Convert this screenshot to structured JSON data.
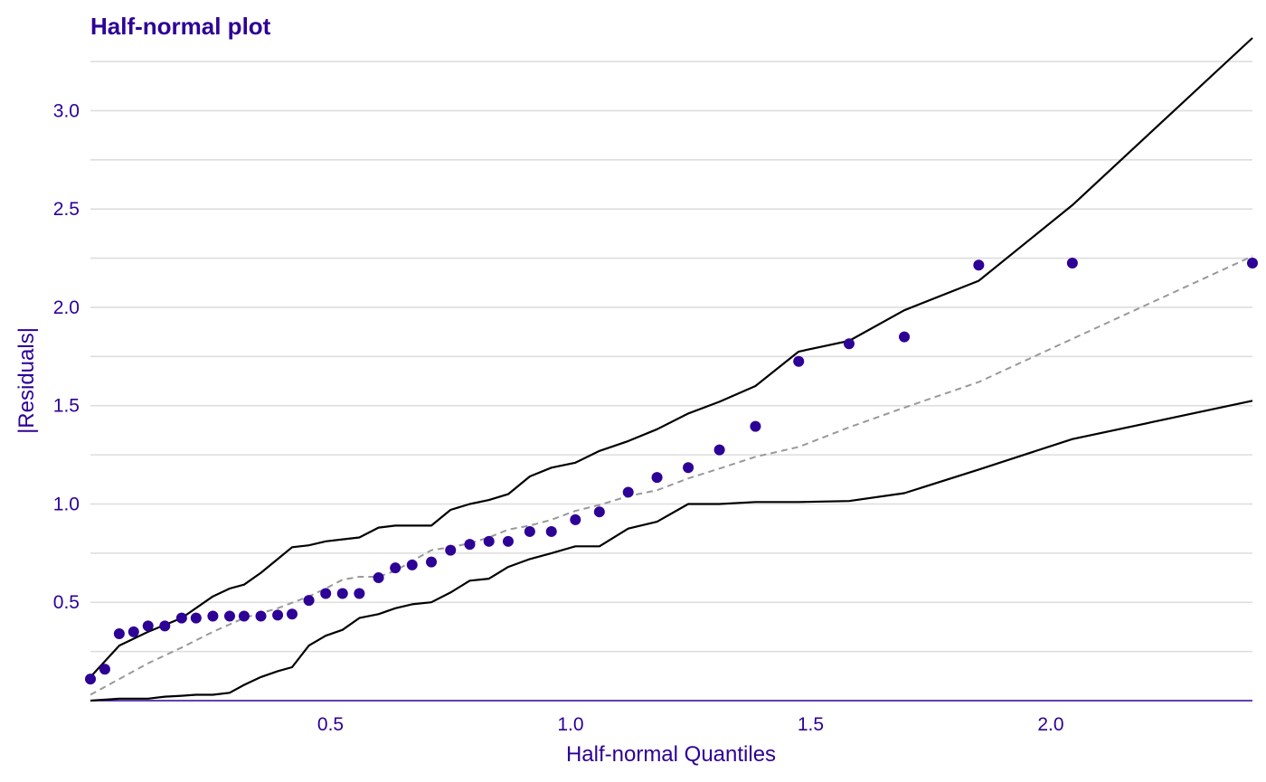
{
  "chart_data": {
    "type": "scatter",
    "title": "Half-normal plot",
    "xlabel": "Half-normal Quantiles",
    "ylabel": "|Residuals|",
    "xlim": [
      0.0,
      2.42
    ],
    "ylim": [
      0.0,
      3.37
    ],
    "x_ticks": [
      "0.5",
      "1.0",
      "1.5",
      "2.0"
    ],
    "x_tick_values": [
      0.5,
      1.0,
      1.5,
      2.0
    ],
    "y_ticks": [
      "0.5",
      "1.0",
      "1.5",
      "2.0",
      "2.5",
      "3.0"
    ],
    "y_tick_values": [
      0.5,
      1.0,
      1.5,
      2.0,
      2.5,
      3.0
    ],
    "y_minor_gridlines": [
      0.25,
      0.75,
      1.25,
      1.75,
      2.25,
      2.75,
      3.25
    ],
    "grid": "horizontal",
    "colors": {
      "accent": "#2d0096",
      "envelope": "#000000",
      "reference": "#999999",
      "grid": "#dddddd"
    },
    "series": [
      {
        "kind": "points",
        "color": "#2d0096",
        "x": [
          0.0,
          0.03,
          0.06,
          0.09,
          0.12,
          0.155,
          0.19,
          0.22,
          0.255,
          0.29,
          0.32,
          0.355,
          0.39,
          0.42,
          0.455,
          0.49,
          0.525,
          0.56,
          0.6,
          0.635,
          0.67,
          0.71,
          0.75,
          0.79,
          0.83,
          0.87,
          0.915,
          0.96,
          1.01,
          1.06,
          1.12,
          1.18,
          1.245,
          1.31,
          1.385,
          1.475,
          1.58,
          1.695,
          1.85,
          2.045,
          2.42
        ],
        "y": [
          0.11,
          0.16,
          0.34,
          0.35,
          0.38,
          0.38,
          0.42,
          0.42,
          0.43,
          0.43,
          0.43,
          0.43,
          0.435,
          0.44,
          0.51,
          0.545,
          0.545,
          0.545,
          0.625,
          0.675,
          0.69,
          0.705,
          0.765,
          0.795,
          0.81,
          0.81,
          0.86,
          0.86,
          0.92,
          0.96,
          1.06,
          1.135,
          1.185,
          1.275,
          1.395,
          1.725,
          1.815,
          1.85,
          2.215,
          2.225,
          2.225
        ]
      },
      {
        "kind": "line",
        "style": "solid",
        "color": "#000000",
        "x": [
          0.0,
          0.06,
          0.12,
          0.19,
          0.255,
          0.29,
          0.32,
          0.355,
          0.39,
          0.42,
          0.455,
          0.49,
          0.56,
          0.6,
          0.635,
          0.71,
          0.75,
          0.79,
          0.83,
          0.87,
          0.915,
          0.96,
          1.01,
          1.06,
          1.12,
          1.18,
          1.245,
          1.31,
          1.385,
          1.475,
          1.58,
          1.695,
          1.85,
          2.045,
          2.42
        ],
        "y": [
          0.12,
          0.28,
          0.35,
          0.42,
          0.53,
          0.57,
          0.59,
          0.65,
          0.72,
          0.78,
          0.79,
          0.81,
          0.83,
          0.88,
          0.89,
          0.89,
          0.97,
          1.0,
          1.02,
          1.05,
          1.14,
          1.185,
          1.21,
          1.27,
          1.32,
          1.38,
          1.46,
          1.52,
          1.6,
          1.775,
          1.83,
          1.985,
          2.135,
          2.52,
          3.37
        ]
      },
      {
        "kind": "line",
        "style": "solid",
        "color": "#000000",
        "x": [
          0.0,
          0.06,
          0.12,
          0.155,
          0.19,
          0.22,
          0.255,
          0.29,
          0.32,
          0.355,
          0.39,
          0.42,
          0.455,
          0.49,
          0.525,
          0.56,
          0.6,
          0.635,
          0.67,
          0.71,
          0.75,
          0.79,
          0.83,
          0.87,
          0.915,
          0.96,
          1.01,
          1.06,
          1.12,
          1.18,
          1.245,
          1.31,
          1.385,
          1.475,
          1.58,
          1.695,
          1.85,
          2.045,
          2.42
        ],
        "y": [
          0.0,
          0.01,
          0.01,
          0.02,
          0.025,
          0.03,
          0.03,
          0.04,
          0.08,
          0.12,
          0.15,
          0.17,
          0.28,
          0.33,
          0.36,
          0.42,
          0.44,
          0.47,
          0.49,
          0.5,
          0.55,
          0.61,
          0.62,
          0.68,
          0.72,
          0.75,
          0.785,
          0.785,
          0.875,
          0.91,
          1.0,
          1.0,
          1.01,
          1.01,
          1.015,
          1.055,
          1.175,
          1.33,
          1.525
        ]
      },
      {
        "kind": "line",
        "style": "dashed",
        "color": "#999999",
        "x": [
          0.0,
          0.06,
          0.12,
          0.19,
          0.255,
          0.32,
          0.39,
          0.455,
          0.49,
          0.525,
          0.56,
          0.6,
          0.635,
          0.67,
          0.71,
          0.75,
          0.79,
          0.83,
          0.87,
          0.915,
          0.96,
          1.01,
          1.06,
          1.12,
          1.18,
          1.245,
          1.31,
          1.385,
          1.475,
          1.58,
          1.695,
          1.85,
          2.045,
          2.42
        ],
        "y": [
          0.03,
          0.11,
          0.19,
          0.27,
          0.35,
          0.42,
          0.47,
          0.53,
          0.57,
          0.615,
          0.63,
          0.63,
          0.66,
          0.71,
          0.765,
          0.78,
          0.8,
          0.83,
          0.87,
          0.89,
          0.92,
          0.965,
          0.995,
          1.04,
          1.07,
          1.13,
          1.18,
          1.24,
          1.29,
          1.39,
          1.49,
          1.62,
          1.84,
          2.26
        ]
      }
    ]
  }
}
